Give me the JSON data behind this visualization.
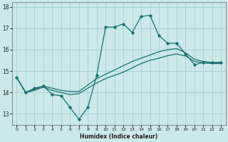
{
  "xlabel": "Humidex (Indice chaleur)",
  "bg_color": "#cce8e8",
  "grid_color": "#aad4d4",
  "line_color": "#1a7070",
  "xlim": [
    -0.5,
    23.5
  ],
  "ylim": [
    12.5,
    18.2
  ],
  "yticks": [
    13,
    14,
    15,
    16,
    17,
    18
  ],
  "xticks": [
    0,
    1,
    2,
    3,
    4,
    5,
    6,
    7,
    8,
    9,
    10,
    11,
    12,
    13,
    14,
    15,
    16,
    17,
    18,
    19,
    20,
    21,
    22,
    23
  ],
  "series1_x": [
    0,
    1,
    2,
    3,
    4,
    5,
    6,
    7,
    8,
    9,
    10,
    11,
    12,
    13,
    14,
    15,
    16,
    17,
    18,
    19,
    20,
    21,
    22,
    23
  ],
  "series1_y": [
    14.7,
    14.0,
    14.2,
    14.3,
    13.9,
    13.85,
    13.3,
    12.75,
    13.3,
    14.8,
    17.05,
    17.05,
    17.2,
    16.8,
    17.55,
    17.6,
    16.65,
    16.3,
    16.3,
    15.8,
    15.3,
    15.4,
    15.4,
    15.4
  ],
  "series2_x": [
    0,
    1,
    2,
    3,
    4,
    5,
    6,
    7,
    8,
    9,
    10,
    11,
    12,
    13,
    14,
    15,
    16,
    17,
    18,
    19,
    20,
    21,
    22,
    23
  ],
  "series2_y": [
    14.7,
    14.0,
    14.15,
    14.3,
    14.2,
    14.1,
    14.05,
    14.05,
    14.35,
    14.65,
    14.85,
    15.05,
    15.25,
    15.45,
    15.6,
    15.75,
    15.9,
    16.0,
    16.05,
    15.85,
    15.55,
    15.45,
    15.4,
    15.4
  ],
  "series3_x": [
    0,
    1,
    2,
    3,
    4,
    5,
    6,
    7,
    8,
    9,
    10,
    11,
    12,
    13,
    14,
    15,
    16,
    17,
    18,
    19,
    20,
    21,
    22,
    23
  ],
  "series3_y": [
    14.7,
    14.0,
    14.1,
    14.25,
    14.1,
    14.0,
    13.9,
    13.95,
    14.2,
    14.45,
    14.65,
    14.8,
    14.95,
    15.15,
    15.35,
    15.5,
    15.6,
    15.72,
    15.8,
    15.7,
    15.45,
    15.38,
    15.35,
    15.35
  ]
}
